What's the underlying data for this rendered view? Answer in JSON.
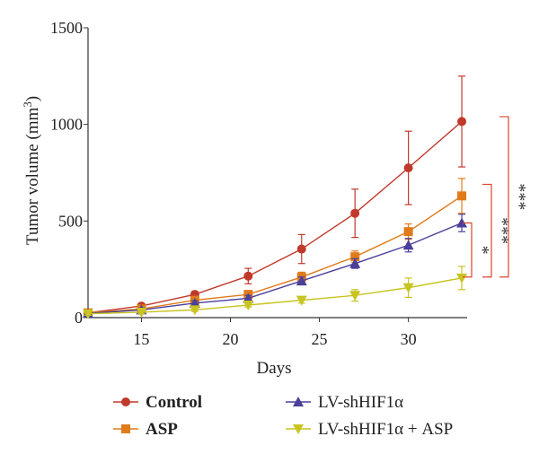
{
  "chart_data": {
    "type": "line",
    "xlabel": "Days",
    "ylabel": "Tumor volume (mm",
    "ylabel_sup": "3",
    "ylabel_close": ")",
    "xlim": [
      12,
      33.3
    ],
    "ylim": [
      0,
      1500
    ],
    "x_ticks": [
      15,
      20,
      25,
      30
    ],
    "y_ticks": [
      0,
      500,
      1000,
      1500
    ],
    "x": [
      12,
      15,
      18,
      21,
      24,
      27,
      30,
      33
    ],
    "series": [
      {
        "name": "Control",
        "color": "#c0392b",
        "marker": "circle",
        "values": [
          25,
          60,
          120,
          215,
          355,
          540,
          775,
          1015
        ],
        "errors": [
          12,
          12,
          15,
          40,
          75,
          125,
          190,
          235
        ]
      },
      {
        "name": "ASP",
        "color": "#e07b1a",
        "marker": "square",
        "values": [
          25,
          45,
          90,
          120,
          210,
          315,
          445,
          630
        ],
        "errors": [
          10,
          10,
          12,
          20,
          25,
          30,
          40,
          90
        ]
      },
      {
        "name": "LV-shHIF1α",
        "color": "#4a3f9a",
        "marker": "triangle-up",
        "values": [
          22,
          40,
          75,
          100,
          190,
          280,
          375,
          490
        ],
        "errors": [
          8,
          10,
          12,
          15,
          20,
          25,
          35,
          45
        ]
      },
      {
        "name": "LV-shHIF1α + ASP",
        "color": "#c8c421",
        "marker": "triangle-down",
        "values": [
          20,
          28,
          40,
          65,
          90,
          115,
          155,
          205
        ],
        "errors": [
          8,
          6,
          8,
          10,
          15,
          30,
          50,
          60
        ]
      }
    ],
    "significance": [
      {
        "label": "*",
        "from": 490,
        "to": 210
      },
      {
        "label": "***",
        "from": 690,
        "to": 210
      },
      {
        "label": "***",
        "from": 1040,
        "to": 210
      }
    ],
    "legend_placement": "bottom",
    "grid": false
  }
}
